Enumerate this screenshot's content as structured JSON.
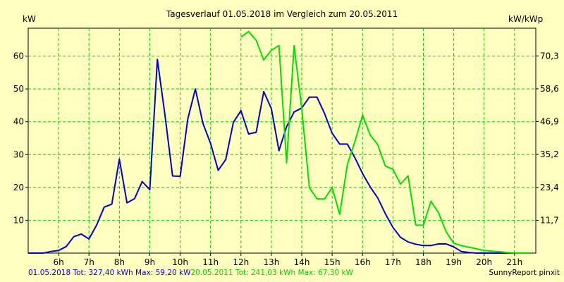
{
  "chart_data": {
    "type": "line",
    "title": "Tagesverlauf 01.05.2018 im Vergleich zum 20.05.2011",
    "ylabel_left": "kW",
    "ylabel_right": "kW/kWp",
    "xlim": [
      5.0,
      21.7
    ],
    "ylim_left": [
      0,
      68.5
    ],
    "ylim_right": [
      0,
      80.2
    ],
    "x_ticks": [
      6,
      7,
      8,
      9,
      10,
      11,
      12,
      13,
      14,
      15,
      16,
      17,
      18,
      19,
      20,
      21
    ],
    "x_tick_labels": [
      "6h",
      "7h",
      "8h",
      "9h",
      "10h",
      "11h",
      "12h",
      "13h",
      "14h",
      "15h",
      "16h",
      "17h",
      "18h",
      "19h",
      "20h",
      "21h"
    ],
    "y_left_ticks": [
      10,
      20,
      30,
      40,
      50,
      60
    ],
    "y_left_tick_labels": [
      "10",
      "20",
      "30",
      "40",
      "50",
      "60"
    ],
    "y_right_ticks": [
      11.7,
      23.4,
      35.2,
      46.9,
      58.6,
      70.3
    ],
    "y_right_tick_labels": [
      "11,7",
      "23,4",
      "35,2",
      "46,9",
      "58,6",
      "70,3"
    ],
    "grid": true,
    "series": [
      {
        "name": "01.05.2018",
        "color": "#0000d0",
        "x": [
          5.0,
          5.5,
          5.75,
          6.0,
          6.25,
          6.5,
          6.75,
          7.0,
          7.25,
          7.5,
          7.75,
          8.0,
          8.25,
          8.5,
          8.75,
          9.0,
          9.25,
          9.5,
          9.75,
          10.0,
          10.25,
          10.5,
          10.75,
          11.0,
          11.25,
          11.5,
          11.75,
          12.0,
          12.25,
          12.5,
          12.75,
          13.0,
          13.25,
          13.5,
          13.75,
          14.0,
          14.25,
          14.5,
          14.75,
          15.0,
          15.25,
          15.5,
          15.75,
          16.0,
          16.25,
          16.5,
          16.75,
          17.0,
          17.25,
          17.5,
          17.75,
          18.0,
          18.25,
          18.5,
          18.75,
          19.0,
          19.25,
          19.5,
          19.75,
          20.0,
          20.5,
          21.0
        ],
        "values": [
          0,
          0,
          0.5,
          0.8,
          2.0,
          5.0,
          5.8,
          4.3,
          8.5,
          14.0,
          14.9,
          28.6,
          15.3,
          16.6,
          21.8,
          19.3,
          59.0,
          42.0,
          23.5,
          23.4,
          40.8,
          50.0,
          39.5,
          33.4,
          25.2,
          28.5,
          39.8,
          43.4,
          36.3,
          36.8,
          49.2,
          44.0,
          31.2,
          38.5,
          43.0,
          44.2,
          47.5,
          47.5,
          42.5,
          36.5,
          33.2,
          33.2,
          29.0,
          24.2,
          20.2,
          16.8,
          12.0,
          7.8,
          4.8,
          3.4,
          2.7,
          2.3,
          2.3,
          2.8,
          2.8,
          1.9,
          0.5,
          0.2,
          0,
          0,
          0,
          0
        ]
      },
      {
        "name": "20.05.2011",
        "color": "#00e000",
        "x": [
          12.0,
          12.25,
          12.5,
          12.75,
          13.0,
          13.25,
          13.5,
          13.75,
          14.0,
          14.25,
          14.5,
          14.75,
          15.0,
          15.25,
          15.5,
          15.75,
          16.0,
          16.25,
          16.5,
          16.75,
          17.0,
          17.25,
          17.5,
          17.75,
          18.0,
          18.25,
          18.5,
          18.75,
          19.0,
          19.25,
          19.5,
          19.75,
          20.0,
          20.5,
          21.0,
          21.5
        ],
        "values": [
          65.8,
          67.5,
          64.8,
          58.8,
          61.8,
          63.2,
          27.5,
          63.2,
          44.0,
          20.0,
          16.5,
          16.5,
          20.0,
          11.8,
          27.0,
          34.0,
          42.0,
          36.0,
          33.0,
          26.5,
          25.5,
          21.0,
          23.5,
          8.5,
          8.5,
          15.8,
          12.3,
          6.5,
          3.0,
          2.3,
          1.8,
          1.3,
          0.8,
          0.4,
          0,
          0
        ]
      }
    ]
  },
  "footer": {
    "series1_text": "01.05.2018 Tot: 327,40 kWh Max: 59,20 kW",
    "series2_text": "20.05.2011 Tot: 241,03 kWh Max: 67,30 kW",
    "credit": "SunnyReport pinxit"
  }
}
